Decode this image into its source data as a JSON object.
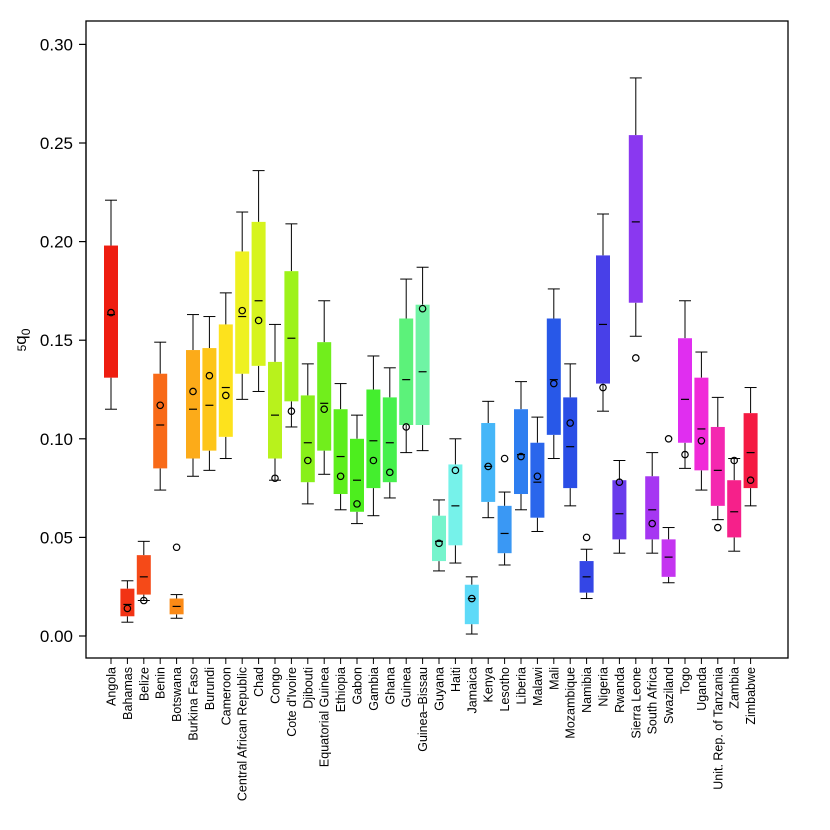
{
  "chart_data": {
    "type": "boxplot",
    "title": "",
    "xlabel": "",
    "ylabel": "5q0",
    "ylabel_parts": {
      "sub": "5",
      "main": "q",
      "post": "0"
    },
    "ylim": [
      -0.01,
      0.31
    ],
    "y_ticks": [
      0.0,
      0.05,
      0.1,
      0.15,
      0.2,
      0.25,
      0.3
    ],
    "y_tick_labels": [
      "0.00",
      "0.05",
      "0.10",
      "0.15",
      "0.20",
      "0.25",
      "0.30"
    ],
    "series": [
      {
        "name": "Angola",
        "whisker_low": 0.115,
        "q1": 0.131,
        "median": 0.163,
        "q3": 0.198,
        "whisker_high": 0.221,
        "point": 0.164,
        "color": "#ee1d10"
      },
      {
        "name": "Bahamas",
        "whisker_low": 0.007,
        "q1": 0.01,
        "median": 0.016,
        "q3": 0.024,
        "whisker_high": 0.028,
        "point": 0.014,
        "color": "#f23314"
      },
      {
        "name": "Belize",
        "whisker_low": 0.018,
        "q1": 0.021,
        "median": 0.03,
        "q3": 0.041,
        "whisker_high": 0.048,
        "point": 0.018,
        "color": "#f54a18"
      },
      {
        "name": "Benin",
        "whisker_low": 0.074,
        "q1": 0.085,
        "median": 0.107,
        "q3": 0.133,
        "whisker_high": 0.149,
        "point": 0.117,
        "color": "#f86a18"
      },
      {
        "name": "Botswana",
        "whisker_low": 0.009,
        "q1": 0.011,
        "median": 0.015,
        "q3": 0.019,
        "whisker_high": 0.021,
        "point": 0.045,
        "color": "#fb8a16"
      },
      {
        "name": "Burkina Faso",
        "whisker_low": 0.081,
        "q1": 0.09,
        "median": 0.115,
        "q3": 0.145,
        "whisker_high": 0.163,
        "point": 0.124,
        "color": "#fcab19"
      },
      {
        "name": "Burundi",
        "whisker_low": 0.084,
        "q1": 0.094,
        "median": 0.117,
        "q3": 0.146,
        "whisker_high": 0.162,
        "point": 0.132,
        "color": "#fdc519"
      },
      {
        "name": "Cameroon",
        "whisker_low": 0.09,
        "q1": 0.101,
        "median": 0.126,
        "q3": 0.158,
        "whisker_high": 0.174,
        "point": 0.122,
        "color": "#fde21d"
      },
      {
        "name": "Central African Republic",
        "whisker_low": 0.12,
        "q1": 0.133,
        "median": 0.162,
        "q3": 0.195,
        "whisker_high": 0.215,
        "point": 0.165,
        "color": "#eef121"
      },
      {
        "name": "Chad",
        "whisker_low": 0.124,
        "q1": 0.137,
        "median": 0.17,
        "q3": 0.21,
        "whisker_high": 0.236,
        "point": 0.16,
        "color": "#d6f41e"
      },
      {
        "name": "Congo",
        "whisker_low": 0.079,
        "q1": 0.09,
        "median": 0.112,
        "q3": 0.139,
        "whisker_high": 0.158,
        "point": 0.08,
        "color": "#b8f21c"
      },
      {
        "name": "Cote d'Ivoire",
        "whisker_low": 0.106,
        "q1": 0.119,
        "median": 0.151,
        "q3": 0.185,
        "whisker_high": 0.209,
        "point": 0.114,
        "color": "#9df21a"
      },
      {
        "name": "Djibouti",
        "whisker_low": 0.067,
        "q1": 0.078,
        "median": 0.098,
        "q3": 0.122,
        "whisker_high": 0.138,
        "point": 0.089,
        "color": "#88f01a"
      },
      {
        "name": "Equatorial Guinea",
        "whisker_low": 0.082,
        "q1": 0.094,
        "median": 0.118,
        "q3": 0.149,
        "whisker_high": 0.17,
        "point": 0.115,
        "color": "#71ee1c"
      },
      {
        "name": "Ethiopia",
        "whisker_low": 0.064,
        "q1": 0.072,
        "median": 0.091,
        "q3": 0.115,
        "whisker_high": 0.128,
        "point": 0.081,
        "color": "#5eee1c"
      },
      {
        "name": "Gabon",
        "whisker_low": 0.057,
        "q1": 0.063,
        "median": 0.079,
        "q3": 0.1,
        "whisker_high": 0.112,
        "point": 0.067,
        "color": "#4dee1e"
      },
      {
        "name": "Gambia",
        "whisker_low": 0.061,
        "q1": 0.075,
        "median": 0.099,
        "q3": 0.125,
        "whisker_high": 0.142,
        "point": 0.089,
        "color": "#44ee2e"
      },
      {
        "name": "Ghana",
        "whisker_low": 0.07,
        "q1": 0.078,
        "median": 0.098,
        "q3": 0.121,
        "whisker_high": 0.136,
        "point": 0.083,
        "color": "#46f04c"
      },
      {
        "name": "Guinea",
        "whisker_low": 0.093,
        "q1": 0.107,
        "median": 0.13,
        "q3": 0.161,
        "whisker_high": 0.181,
        "point": 0.106,
        "color": "#5cf27a"
      },
      {
        "name": "Guinea–Bissau",
        "whisker_low": 0.094,
        "q1": 0.107,
        "median": 0.134,
        "q3": 0.168,
        "whisker_high": 0.187,
        "point": 0.166,
        "color": "#6ff4a4"
      },
      {
        "name": "Guyana",
        "whisker_low": 0.033,
        "q1": 0.038,
        "median": 0.048,
        "q3": 0.061,
        "whisker_high": 0.069,
        "point": 0.047,
        "color": "#76f4cc"
      },
      {
        "name": "Haiti",
        "whisker_low": 0.037,
        "q1": 0.046,
        "median": 0.066,
        "q3": 0.087,
        "whisker_high": 0.1,
        "point": 0.084,
        "color": "#76f2ea"
      },
      {
        "name": "Jamaica",
        "whisker_low": 0.001,
        "q1": 0.006,
        "median": 0.019,
        "q3": 0.026,
        "whisker_high": 0.03,
        "point": 0.019,
        "color": "#5edaf8"
      },
      {
        "name": "Kenya",
        "whisker_low": 0.06,
        "q1": 0.068,
        "median": 0.086,
        "q3": 0.108,
        "whisker_high": 0.119,
        "point": 0.086,
        "color": "#46b6f8"
      },
      {
        "name": "Lesotho",
        "whisker_low": 0.036,
        "q1": 0.042,
        "median": 0.052,
        "q3": 0.066,
        "whisker_high": 0.073,
        "point": 0.09,
        "color": "#3a98f4"
      },
      {
        "name": "Liberia",
        "whisker_low": 0.064,
        "q1": 0.072,
        "median": 0.092,
        "q3": 0.115,
        "whisker_high": 0.129,
        "point": 0.091,
        "color": "#2e7ef0"
      },
      {
        "name": "Malawi",
        "whisker_low": 0.053,
        "q1": 0.06,
        "median": 0.078,
        "q3": 0.098,
        "whisker_high": 0.111,
        "point": 0.081,
        "color": "#2a66ec"
      },
      {
        "name": "Mali",
        "whisker_low": 0.09,
        "q1": 0.102,
        "median": 0.13,
        "q3": 0.161,
        "whisker_high": 0.176,
        "point": 0.128,
        "color": "#2858e8"
      },
      {
        "name": "Mozambique",
        "whisker_low": 0.066,
        "q1": 0.075,
        "median": 0.096,
        "q3": 0.121,
        "whisker_high": 0.138,
        "point": 0.108,
        "color": "#2a4ee6"
      },
      {
        "name": "Namibia",
        "whisker_low": 0.019,
        "q1": 0.022,
        "median": 0.03,
        "q3": 0.038,
        "whisker_high": 0.044,
        "point": 0.05,
        "color": "#3446e6"
      },
      {
        "name": "Nigeria",
        "whisker_low": 0.114,
        "q1": 0.128,
        "median": 0.158,
        "q3": 0.193,
        "whisker_high": 0.214,
        "point": 0.126,
        "color": "#4840e8"
      },
      {
        "name": "Rwanda",
        "whisker_low": 0.042,
        "q1": 0.049,
        "median": 0.062,
        "q3": 0.079,
        "whisker_high": 0.089,
        "point": 0.078,
        "color": "#6a3cec"
      },
      {
        "name": "Sierra Leone",
        "whisker_low": 0.152,
        "q1": 0.169,
        "median": 0.21,
        "q3": 0.254,
        "whisker_high": 0.283,
        "point": 0.141,
        "color": "#8a38f0"
      },
      {
        "name": "South Africa",
        "whisker_low": 0.042,
        "q1": 0.049,
        "median": 0.064,
        "q3": 0.081,
        "whisker_high": 0.093,
        "point": 0.057,
        "color": "#a636f2"
      },
      {
        "name": "Swaziland",
        "whisker_low": 0.027,
        "q1": 0.03,
        "median": 0.04,
        "q3": 0.049,
        "whisker_high": 0.055,
        "point": 0.1,
        "color": "#c434f0"
      },
      {
        "name": "Togo",
        "whisker_low": 0.085,
        "q1": 0.098,
        "median": 0.12,
        "q3": 0.151,
        "whisker_high": 0.17,
        "point": 0.092,
        "color": "#e02ef0"
      },
      {
        "name": "Uganda",
        "whisker_low": 0.074,
        "q1": 0.084,
        "median": 0.105,
        "q3": 0.131,
        "whisker_high": 0.144,
        "point": 0.099,
        "color": "#f02ad8"
      },
      {
        "name": "Unit. Rep. of Tanzania",
        "whisker_low": 0.059,
        "q1": 0.066,
        "median": 0.084,
        "q3": 0.106,
        "whisker_high": 0.121,
        "point": 0.055,
        "color": "#f428b0"
      },
      {
        "name": "Zambia",
        "whisker_low": 0.043,
        "q1": 0.05,
        "median": 0.063,
        "q3": 0.079,
        "whisker_high": 0.09,
        "point": 0.089,
        "color": "#f6208a"
      },
      {
        "name": "Zimbabwe",
        "whisker_low": 0.066,
        "q1": 0.075,
        "median": 0.093,
        "q3": 0.113,
        "whisker_high": 0.126,
        "point": 0.079,
        "color": "#f41a42"
      }
    ]
  }
}
